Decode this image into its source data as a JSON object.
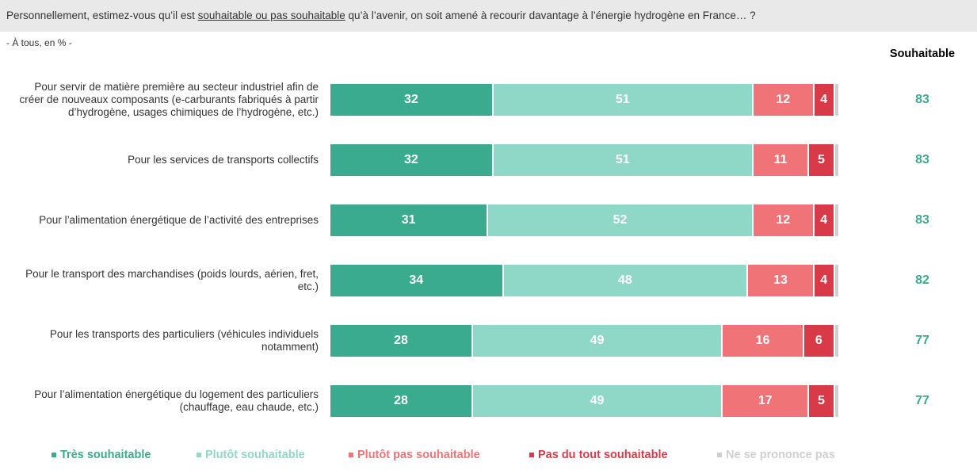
{
  "chart_data": {
    "type": "stacked_bar_horizontal",
    "title": [
      "Personnellement, estimez-vous qu’il est ",
      "souhaitable ou pas souhaitable",
      " qu’à l’avenir, on soit amené à recourir davantage à l’énergie hydrogène en France… ?"
    ],
    "subtitle": "- À tous, en % -",
    "categories": [
      "Pour servir de matière première au secteur industriel afin de créer de nouveaux composants (e-carburants fabriqués à partir d’hydrogène, usages chimiques de l’hydrogène, etc.)",
      "Pour les services de transports collectifs",
      "Pour l’alimentation énergétique de l’activité des entreprises",
      "Pour le transport des marchandises (poids lourds, aérien, fret, etc.)",
      "Pour les transports des particuliers (véhicules individuels notamment)",
      "Pour l’alimentation énergétique du logement des particuliers (chauffage, eau chaude, etc.)"
    ],
    "series": [
      {
        "name": "Très souhaitable",
        "color": "#3aab8f",
        "values": [
          32,
          32,
          31,
          34,
          28,
          28
        ]
      },
      {
        "name": "Plutôt souhaitable",
        "color": "#8fd7c7",
        "values": [
          51,
          51,
          52,
          48,
          49,
          49
        ]
      },
      {
        "name": "Plutôt pas souhaitable",
        "color": "#f07377",
        "values": [
          12,
          11,
          12,
          13,
          16,
          17
        ]
      },
      {
        "name": "Pas du tout souhaitable",
        "color": "#d93a47",
        "values": [
          4,
          5,
          4,
          4,
          6,
          5
        ]
      },
      {
        "name": "Ne se prononce pas",
        "color": "#cfcfcf",
        "values": [
          1,
          1,
          1,
          1,
          1,
          1
        ]
      }
    ],
    "totals": {
      "label": "Souhaitable",
      "color": "#3aab8f",
      "values": [
        83,
        83,
        83,
        82,
        77,
        77
      ]
    },
    "xlim": [
      0,
      100
    ]
  }
}
